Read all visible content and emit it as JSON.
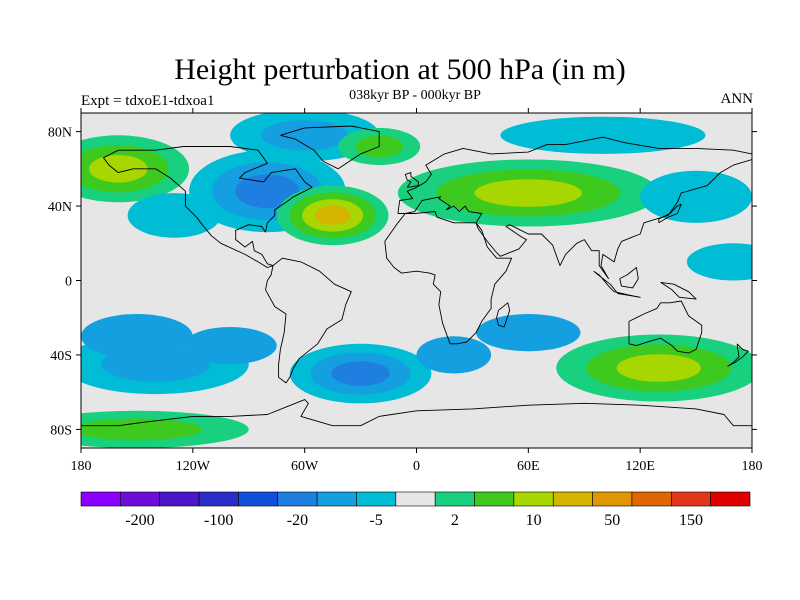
{
  "header": {
    "title": "Height perturbation at 500 hPa (in m)",
    "subtitle": "038kyr BP - 000kyr BP",
    "left_note": "Expt = tdxoE1-tdxoa1",
    "right_note": "ANN"
  },
  "map": {
    "projection": "cylindrical equidistant",
    "lon_range": [
      -180,
      180
    ],
    "lat_range": [
      -90,
      90
    ],
    "x_ticks": [
      "180",
      "120W",
      "60W",
      "0",
      "60E",
      "120E",
      "180"
    ],
    "y_ticks": [
      "80N",
      "40N",
      "0",
      "40S",
      "80S"
    ],
    "background_color": "#e6e6e6",
    "coastline_color": "#000000"
  },
  "colorbar": {
    "colors": [
      "#8b00ff",
      "#6a0ed8",
      "#4b16c8",
      "#2a2ec8",
      "#1050d8",
      "#1e7fe0",
      "#14a0e0",
      "#00bcd4",
      "#e6e6e6",
      "#19d07e",
      "#3ec91e",
      "#a8d600",
      "#d4b400",
      "#e09600",
      "#e06600",
      "#e03818",
      "#e00000"
    ],
    "labels": [
      "-200",
      "-100",
      "-20",
      "-5",
      "2",
      "10",
      "50",
      "150"
    ]
  },
  "chart_data": {
    "type": "heatmap",
    "title": "Height perturbation at 500 hPa (in m)",
    "subtitle": "038kyr BP - 000kyr BP",
    "variable": "500 hPa geopotential height perturbation",
    "units": "m",
    "x_range": [
      -180,
      180
    ],
    "y_range": [
      -90,
      90
    ],
    "color_levels_labeled": [
      -200,
      -100,
      -20,
      -5,
      2,
      10,
      50,
      150
    ],
    "features": [
      {
        "region": "North America / Hudson Bay",
        "lon": -80,
        "lat": 48,
        "value": -25,
        "sign": "negative"
      },
      {
        "region": "Arctic (Canada/Greenland)",
        "lon": -60,
        "lat": 78,
        "value": -10,
        "sign": "negative"
      },
      {
        "region": "North Atlantic (west)",
        "lon": -45,
        "lat": 35,
        "value": 50,
        "sign": "positive"
      },
      {
        "region": "Greenland Sea",
        "lon": -20,
        "lat": 72,
        "value": 8,
        "sign": "positive"
      },
      {
        "region": "North Pacific",
        "lon": -160,
        "lat": 60,
        "value": 20,
        "sign": "positive"
      },
      {
        "region": "Eurasia mid-latitudes",
        "lon": 60,
        "lat": 47,
        "value": 25,
        "sign": "positive"
      },
      {
        "region": "Arctic Siberia",
        "lon": 100,
        "lat": 78,
        "value": -6,
        "sign": "negative"
      },
      {
        "region": "East Asia / NW Pacific",
        "lon": 150,
        "lat": 45,
        "value": -5,
        "sign": "negative"
      },
      {
        "region": "South Atlantic",
        "lon": -30,
        "lat": -50,
        "value": -25,
        "sign": "negative"
      },
      {
        "region": "South Pacific",
        "lon": -140,
        "lat": -45,
        "value": -10,
        "sign": "negative"
      },
      {
        "region": "Southern Indian Ocean",
        "lon": 130,
        "lat": -47,
        "value": 25,
        "sign": "positive"
      },
      {
        "region": "Antarctic coast (Pacific sector)",
        "lon": -150,
        "lat": -80,
        "value": 8,
        "sign": "positive"
      }
    ]
  }
}
